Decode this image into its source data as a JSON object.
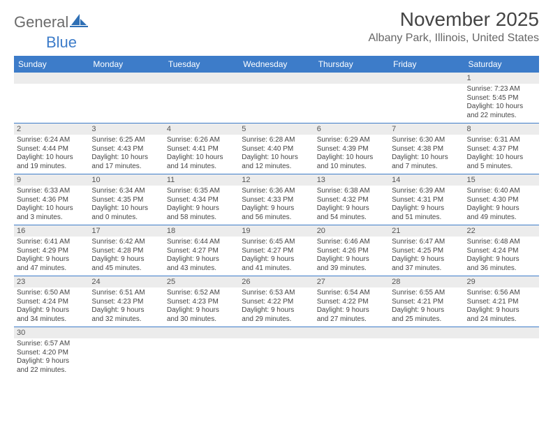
{
  "brand": {
    "part1": "General",
    "part2": "Blue"
  },
  "title": "November 2025",
  "location": "Albany Park, Illinois, United States",
  "colors": {
    "header_bg": "#3d7cc9",
    "header_fg": "#ffffff",
    "daynum_bg": "#ececec",
    "text": "#444444",
    "border": "#3d7cc9",
    "background": "#ffffff"
  },
  "typography": {
    "title_fontsize": 28,
    "location_fontsize": 16,
    "dayheader_fontsize": 12,
    "cell_fontsize": 10
  },
  "dayNames": [
    "Sunday",
    "Monday",
    "Tuesday",
    "Wednesday",
    "Thursday",
    "Friday",
    "Saturday"
  ],
  "weeks": [
    [
      {
        "day": null
      },
      {
        "day": null
      },
      {
        "day": null
      },
      {
        "day": null
      },
      {
        "day": null
      },
      {
        "day": null
      },
      {
        "day": "1",
        "sunrise": "Sunrise: 7:23 AM",
        "sunset": "Sunset: 5:45 PM",
        "daylight1": "Daylight: 10 hours",
        "daylight2": "and 22 minutes."
      }
    ],
    [
      {
        "day": "2",
        "sunrise": "Sunrise: 6:24 AM",
        "sunset": "Sunset: 4:44 PM",
        "daylight1": "Daylight: 10 hours",
        "daylight2": "and 19 minutes."
      },
      {
        "day": "3",
        "sunrise": "Sunrise: 6:25 AM",
        "sunset": "Sunset: 4:43 PM",
        "daylight1": "Daylight: 10 hours",
        "daylight2": "and 17 minutes."
      },
      {
        "day": "4",
        "sunrise": "Sunrise: 6:26 AM",
        "sunset": "Sunset: 4:41 PM",
        "daylight1": "Daylight: 10 hours",
        "daylight2": "and 14 minutes."
      },
      {
        "day": "5",
        "sunrise": "Sunrise: 6:28 AM",
        "sunset": "Sunset: 4:40 PM",
        "daylight1": "Daylight: 10 hours",
        "daylight2": "and 12 minutes."
      },
      {
        "day": "6",
        "sunrise": "Sunrise: 6:29 AM",
        "sunset": "Sunset: 4:39 PM",
        "daylight1": "Daylight: 10 hours",
        "daylight2": "and 10 minutes."
      },
      {
        "day": "7",
        "sunrise": "Sunrise: 6:30 AM",
        "sunset": "Sunset: 4:38 PM",
        "daylight1": "Daylight: 10 hours",
        "daylight2": "and 7 minutes."
      },
      {
        "day": "8",
        "sunrise": "Sunrise: 6:31 AM",
        "sunset": "Sunset: 4:37 PM",
        "daylight1": "Daylight: 10 hours",
        "daylight2": "and 5 minutes."
      }
    ],
    [
      {
        "day": "9",
        "sunrise": "Sunrise: 6:33 AM",
        "sunset": "Sunset: 4:36 PM",
        "daylight1": "Daylight: 10 hours",
        "daylight2": "and 3 minutes."
      },
      {
        "day": "10",
        "sunrise": "Sunrise: 6:34 AM",
        "sunset": "Sunset: 4:35 PM",
        "daylight1": "Daylight: 10 hours",
        "daylight2": "and 0 minutes."
      },
      {
        "day": "11",
        "sunrise": "Sunrise: 6:35 AM",
        "sunset": "Sunset: 4:34 PM",
        "daylight1": "Daylight: 9 hours",
        "daylight2": "and 58 minutes."
      },
      {
        "day": "12",
        "sunrise": "Sunrise: 6:36 AM",
        "sunset": "Sunset: 4:33 PM",
        "daylight1": "Daylight: 9 hours",
        "daylight2": "and 56 minutes."
      },
      {
        "day": "13",
        "sunrise": "Sunrise: 6:38 AM",
        "sunset": "Sunset: 4:32 PM",
        "daylight1": "Daylight: 9 hours",
        "daylight2": "and 54 minutes."
      },
      {
        "day": "14",
        "sunrise": "Sunrise: 6:39 AM",
        "sunset": "Sunset: 4:31 PM",
        "daylight1": "Daylight: 9 hours",
        "daylight2": "and 51 minutes."
      },
      {
        "day": "15",
        "sunrise": "Sunrise: 6:40 AM",
        "sunset": "Sunset: 4:30 PM",
        "daylight1": "Daylight: 9 hours",
        "daylight2": "and 49 minutes."
      }
    ],
    [
      {
        "day": "16",
        "sunrise": "Sunrise: 6:41 AM",
        "sunset": "Sunset: 4:29 PM",
        "daylight1": "Daylight: 9 hours",
        "daylight2": "and 47 minutes."
      },
      {
        "day": "17",
        "sunrise": "Sunrise: 6:42 AM",
        "sunset": "Sunset: 4:28 PM",
        "daylight1": "Daylight: 9 hours",
        "daylight2": "and 45 minutes."
      },
      {
        "day": "18",
        "sunrise": "Sunrise: 6:44 AM",
        "sunset": "Sunset: 4:27 PM",
        "daylight1": "Daylight: 9 hours",
        "daylight2": "and 43 minutes."
      },
      {
        "day": "19",
        "sunrise": "Sunrise: 6:45 AM",
        "sunset": "Sunset: 4:27 PM",
        "daylight1": "Daylight: 9 hours",
        "daylight2": "and 41 minutes."
      },
      {
        "day": "20",
        "sunrise": "Sunrise: 6:46 AM",
        "sunset": "Sunset: 4:26 PM",
        "daylight1": "Daylight: 9 hours",
        "daylight2": "and 39 minutes."
      },
      {
        "day": "21",
        "sunrise": "Sunrise: 6:47 AM",
        "sunset": "Sunset: 4:25 PM",
        "daylight1": "Daylight: 9 hours",
        "daylight2": "and 37 minutes."
      },
      {
        "day": "22",
        "sunrise": "Sunrise: 6:48 AM",
        "sunset": "Sunset: 4:24 PM",
        "daylight1": "Daylight: 9 hours",
        "daylight2": "and 36 minutes."
      }
    ],
    [
      {
        "day": "23",
        "sunrise": "Sunrise: 6:50 AM",
        "sunset": "Sunset: 4:24 PM",
        "daylight1": "Daylight: 9 hours",
        "daylight2": "and 34 minutes."
      },
      {
        "day": "24",
        "sunrise": "Sunrise: 6:51 AM",
        "sunset": "Sunset: 4:23 PM",
        "daylight1": "Daylight: 9 hours",
        "daylight2": "and 32 minutes."
      },
      {
        "day": "25",
        "sunrise": "Sunrise: 6:52 AM",
        "sunset": "Sunset: 4:23 PM",
        "daylight1": "Daylight: 9 hours",
        "daylight2": "and 30 minutes."
      },
      {
        "day": "26",
        "sunrise": "Sunrise: 6:53 AM",
        "sunset": "Sunset: 4:22 PM",
        "daylight1": "Daylight: 9 hours",
        "daylight2": "and 29 minutes."
      },
      {
        "day": "27",
        "sunrise": "Sunrise: 6:54 AM",
        "sunset": "Sunset: 4:22 PM",
        "daylight1": "Daylight: 9 hours",
        "daylight2": "and 27 minutes."
      },
      {
        "day": "28",
        "sunrise": "Sunrise: 6:55 AM",
        "sunset": "Sunset: 4:21 PM",
        "daylight1": "Daylight: 9 hours",
        "daylight2": "and 25 minutes."
      },
      {
        "day": "29",
        "sunrise": "Sunrise: 6:56 AM",
        "sunset": "Sunset: 4:21 PM",
        "daylight1": "Daylight: 9 hours",
        "daylight2": "and 24 minutes."
      }
    ],
    [
      {
        "day": "30",
        "sunrise": "Sunrise: 6:57 AM",
        "sunset": "Sunset: 4:20 PM",
        "daylight1": "Daylight: 9 hours",
        "daylight2": "and 22 minutes."
      },
      {
        "day": null
      },
      {
        "day": null
      },
      {
        "day": null
      },
      {
        "day": null
      },
      {
        "day": null
      },
      {
        "day": null
      }
    ]
  ]
}
